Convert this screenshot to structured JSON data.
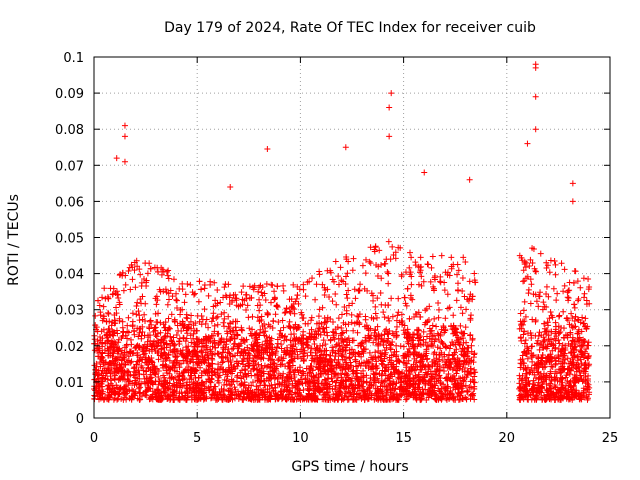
{
  "chart_data": {
    "type": "scatter",
    "title": "Day 179 of 2024, Rate Of TEC Index for receiver cuib",
    "xlabel": "GPS time / hours",
    "ylabel": "ROTI / TECUs",
    "xlim": [
      0,
      25
    ],
    "ylim": [
      0,
      0.1
    ],
    "xticks": [
      0,
      5,
      10,
      15,
      20,
      25
    ],
    "xtick_labels": [
      "0",
      "5",
      "10",
      "15",
      "20",
      "25"
    ],
    "yticks": [
      0,
      0.01,
      0.02,
      0.03,
      0.04,
      0.05,
      0.06,
      0.07,
      0.08,
      0.09,
      0.1
    ],
    "ytick_labels": [
      "0",
      "0.01",
      "0.02",
      "0.03",
      "0.04",
      "0.05",
      "0.06",
      "0.07",
      "0.08",
      "0.09",
      "0.1"
    ],
    "grid": true,
    "marker": "+",
    "color": "#ff0000",
    "data_gap_hours": [
      18.5,
      20.6
    ],
    "series": [
      {
        "name": "ROTI",
        "notable_points": [
          {
            "x": 1.5,
            "y": 0.081
          },
          {
            "x": 1.5,
            "y": 0.078
          },
          {
            "x": 1.1,
            "y": 0.072
          },
          {
            "x": 1.5,
            "y": 0.071
          },
          {
            "x": 6.6,
            "y": 0.064
          },
          {
            "x": 8.4,
            "y": 0.0745
          },
          {
            "x": 12.2,
            "y": 0.075
          },
          {
            "x": 14.4,
            "y": 0.09
          },
          {
            "x": 14.3,
            "y": 0.086
          },
          {
            "x": 14.3,
            "y": 0.078
          },
          {
            "x": 16.0,
            "y": 0.068
          },
          {
            "x": 18.2,
            "y": 0.066
          },
          {
            "x": 21.0,
            "y": 0.076
          },
          {
            "x": 21.4,
            "y": 0.098
          },
          {
            "x": 21.4,
            "y": 0.097
          },
          {
            "x": 21.4,
            "y": 0.089
          },
          {
            "x": 21.4,
            "y": 0.08
          },
          {
            "x": 23.2,
            "y": 0.065
          },
          {
            "x": 23.2,
            "y": 0.06
          }
        ],
        "envelope": {
          "hours": [
            0,
            2,
            4,
            6,
            8,
            10,
            12,
            14,
            16,
            18.5,
            20.6,
            22,
            24
          ],
          "typical_max": [
            0.033,
            0.045,
            0.04,
            0.038,
            0.037,
            0.038,
            0.045,
            0.05,
            0.045,
            0.045,
            0.05,
            0.045,
            0.04
          ],
          "dense_band": [
            0.005,
            0.03
          ]
        }
      }
    ]
  }
}
